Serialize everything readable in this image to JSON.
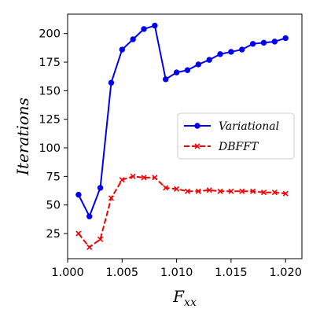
{
  "chart_data": {
    "type": "line",
    "xlabel": "F",
    "xlabel_sub": "xx",
    "ylabel": "Iterations",
    "xlim": [
      1.0,
      1.0215
    ],
    "ylim": [
      3,
      217
    ],
    "xticks": [
      1.0,
      1.005,
      1.01,
      1.015,
      1.02
    ],
    "xtick_labels": [
      "1.000",
      "1.005",
      "1.010",
      "1.015",
      "1.020"
    ],
    "yticks": [
      25,
      50,
      75,
      100,
      125,
      150,
      175,
      200
    ],
    "ytick_labels": [
      "25",
      "50",
      "75",
      "100",
      "125",
      "150",
      "175",
      "200"
    ],
    "grid": false,
    "legend_position": "center-right",
    "x": [
      1.001,
      1.002,
      1.003,
      1.004,
      1.005,
      1.006,
      1.007,
      1.008,
      1.009,
      1.01,
      1.011,
      1.012,
      1.013,
      1.014,
      1.015,
      1.016,
      1.017,
      1.018,
      1.019,
      1.02
    ],
    "series": [
      {
        "name": "Variational",
        "color": "#0000ee",
        "marker": "circle",
        "linestyle": "solid",
        "values": [
          59,
          40,
          65,
          157,
          186,
          195,
          204,
          207,
          160,
          166,
          168,
          173,
          177,
          182,
          184,
          186,
          191,
          192,
          193,
          196
        ]
      },
      {
        "name": "DBFFT",
        "color": "#ee0000",
        "marker": "x",
        "linestyle": "dashed",
        "values": [
          25,
          13,
          20,
          56,
          72,
          75,
          74,
          74,
          65,
          64,
          62,
          62,
          63,
          62,
          62,
          62,
          62,
          61,
          61,
          60
        ]
      }
    ]
  }
}
